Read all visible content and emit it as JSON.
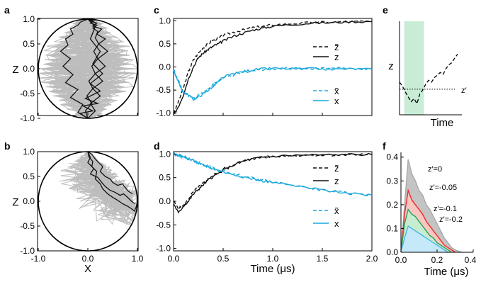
{
  "figure": {
    "panel_labels": [
      "a",
      "b",
      "c",
      "d",
      "e",
      "f"
    ]
  },
  "colors": {
    "black": "#111111",
    "blue": "#1aa7dd",
    "gray": "#bdbdbd",
    "green_band": "#c9ecd7",
    "f_gray": "#a9a9a9",
    "f_red": "#ee2b2b",
    "f_green": "#2e9e60",
    "f_blue": "#48b8e6"
  },
  "chart_data": [
    {
      "panel": "a",
      "type": "scatter",
      "description_kind": "bloch-disk trajectories",
      "xlabel": "X",
      "ylabel": "Z",
      "xlim": [
        -1.0,
        1.0
      ],
      "ylim": [
        -1.05,
        1.05
      ],
      "yticks": [
        "1.0",
        "0.5",
        "0.0",
        "-0.5",
        "-1.0"
      ],
      "xticks": [],
      "trajectories": [
        {
          "x": [
            0.0,
            -0.05,
            0.08,
            -0.02,
            0.1,
            0.02,
            0.15,
            0.08,
            0.2,
            0.12,
            0.22,
            0.15,
            0.2,
            0.1,
            0.18,
            0.05,
            0.12,
            0.02,
            0.1,
            0.0
          ],
          "y": [
            -1.0,
            -0.85,
            -0.7,
            -0.55,
            -0.4,
            -0.25,
            -0.1,
            0.05,
            0.2,
            0.35,
            0.5,
            0.62,
            0.75,
            0.82,
            0.88,
            0.92,
            0.96,
            0.98,
            0.99,
            1.0
          ]
        },
        {
          "x": [
            0.0,
            0.15,
            0.05,
            0.25,
            0.1,
            0.3,
            0.15,
            0.35,
            0.2,
            0.4,
            0.22,
            0.35,
            0.18,
            0.28,
            0.1,
            0.18,
            0.05,
            0.1,
            0.0
          ],
          "y": [
            -1.0,
            -0.85,
            -0.7,
            -0.55,
            -0.4,
            -0.25,
            -0.1,
            0.05,
            0.2,
            0.35,
            0.5,
            0.6,
            0.7,
            0.8,
            0.86,
            0.92,
            0.96,
            0.99,
            1.0
          ]
        },
        {
          "x": [
            0.0,
            -0.2,
            -0.1,
            -0.35,
            -0.2,
            -0.45,
            -0.3,
            -0.5,
            -0.35,
            -0.55,
            -0.4,
            -0.45,
            -0.3,
            -0.35,
            -0.2,
            -0.15,
            -0.05,
            0.0
          ],
          "y": [
            -1.0,
            -0.88,
            -0.72,
            -0.58,
            -0.42,
            -0.28,
            -0.12,
            0.05,
            0.2,
            0.35,
            0.48,
            0.6,
            0.7,
            0.8,
            0.88,
            0.94,
            0.98,
            1.0
          ]
        },
        {
          "x": [
            0.0,
            -0.15,
            0.1,
            -0.1,
            0.2,
            -0.05,
            0.25,
            0.05,
            0.3,
            0.1,
            0.25,
            0.05,
            0.15,
            0.0
          ],
          "y": [
            -1.0,
            -0.9,
            -0.85,
            -0.75,
            -0.7,
            -0.6,
            -0.45,
            -0.3,
            -0.1,
            0.1,
            0.35,
            0.6,
            0.85,
            1.0
          ]
        }
      ]
    },
    {
      "panel": "b",
      "type": "scatter",
      "description_kind": "bloch-disk trajectories",
      "xlabel": "X",
      "ylabel": "Z",
      "xlim": [
        -1.0,
        1.0
      ],
      "ylim": [
        -1.05,
        1.05
      ],
      "yticks": [
        "1.0",
        "0.5",
        "0.0",
        "-0.5",
        "-1.0"
      ],
      "xticks": [
        "-1.0",
        "0.0",
        "1.0"
      ],
      "trajectories": [
        {
          "x": [
            0.0,
            0.02,
            0.1,
            0.08,
            0.18,
            0.15,
            0.25,
            0.3,
            0.4,
            0.5,
            0.6,
            0.7,
            0.8,
            0.88,
            0.94,
            0.98,
            1.0
          ],
          "y": [
            1.0,
            0.9,
            0.8,
            0.7,
            0.6,
            0.45,
            0.35,
            0.25,
            0.15,
            0.08,
            0.02,
            -0.05,
            -0.1,
            -0.15,
            -0.2,
            -0.1,
            0.0
          ]
        },
        {
          "x": [
            0.0,
            0.05,
            0.0,
            0.12,
            0.05,
            0.2,
            0.28,
            0.35,
            0.45,
            0.55,
            0.65,
            0.72,
            0.8,
            0.88,
            0.95
          ],
          "y": [
            1.0,
            0.88,
            0.78,
            0.66,
            0.55,
            0.48,
            0.38,
            0.3,
            0.22,
            0.18,
            0.12,
            0.15,
            0.08,
            0.0,
            -0.05
          ]
        },
        {
          "x": [
            0.0,
            0.08,
            0.15,
            0.22,
            0.3,
            0.25,
            0.35,
            0.45,
            0.5,
            0.6,
            0.7,
            0.75,
            0.82,
            0.9
          ],
          "y": [
            1.0,
            0.95,
            0.85,
            0.78,
            0.7,
            0.6,
            0.5,
            0.45,
            0.38,
            0.32,
            0.35,
            0.28,
            0.2,
            0.15
          ]
        }
      ]
    },
    {
      "panel": "c",
      "type": "line",
      "xlim": [
        0.0,
        2.0
      ],
      "ylim": [
        -1.05,
        1.05
      ],
      "yticks": [
        "1.0",
        "0.5",
        "0.0",
        "-0.5",
        "-1.0"
      ],
      "xticks": [],
      "legend": [
        "z̃",
        "z",
        "x̃",
        "x"
      ],
      "series": [
        {
          "name": "z̃",
          "style": "dashed",
          "color": "black",
          "x": [
            0,
            0.05,
            0.1,
            0.15,
            0.2,
            0.25,
            0.3,
            0.35,
            0.4,
            0.45,
            0.5,
            0.6,
            0.7,
            0.8,
            0.9,
            1.0,
            1.2,
            1.4,
            1.6,
            1.8,
            2.0
          ],
          "y": [
            -1.0,
            -0.75,
            -0.45,
            -0.1,
            0.15,
            0.3,
            0.42,
            0.5,
            0.58,
            0.62,
            0.68,
            0.75,
            0.8,
            0.85,
            0.88,
            0.91,
            0.94,
            0.96,
            0.97,
            0.98,
            0.99
          ]
        },
        {
          "name": "z",
          "style": "solid",
          "color": "black",
          "x": [
            0,
            0.05,
            0.1,
            0.15,
            0.2,
            0.25,
            0.3,
            0.35,
            0.4,
            0.45,
            0.5,
            0.6,
            0.7,
            0.8,
            0.9,
            1.0,
            1.2,
            1.4,
            1.6,
            1.8,
            2.0
          ],
          "y": [
            -1.05,
            -0.85,
            -0.6,
            -0.25,
            0.0,
            0.2,
            0.3,
            0.38,
            0.45,
            0.5,
            0.56,
            0.66,
            0.73,
            0.8,
            0.84,
            0.88,
            0.92,
            0.95,
            0.96,
            0.98,
            0.98
          ]
        },
        {
          "name": "x̃",
          "style": "dashed",
          "color": "blue",
          "x": [
            0,
            0.05,
            0.1,
            0.15,
            0.2,
            0.25,
            0.3,
            0.35,
            0.4,
            0.45,
            0.5,
            0.6,
            0.7,
            0.8,
            0.9,
            1.0,
            1.2,
            1.4,
            1.6,
            1.8,
            2.0
          ],
          "y": [
            -0.05,
            -0.3,
            -0.55,
            -0.62,
            -0.68,
            -0.6,
            -0.55,
            -0.48,
            -0.38,
            -0.3,
            -0.25,
            -0.18,
            -0.12,
            -0.08,
            -0.06,
            -0.04,
            -0.03,
            -0.04,
            -0.03,
            -0.04,
            -0.04
          ]
        },
        {
          "name": "x",
          "style": "solid",
          "color": "blue",
          "x": [
            0,
            0.05,
            0.1,
            0.15,
            0.2,
            0.25,
            0.3,
            0.35,
            0.4,
            0.45,
            0.5,
            0.6,
            0.7,
            0.8,
            0.9,
            1.0,
            1.2,
            1.4,
            1.6,
            1.8,
            2.0
          ],
          "y": [
            -0.05,
            -0.35,
            -0.55,
            -0.6,
            -0.7,
            -0.65,
            -0.58,
            -0.5,
            -0.42,
            -0.32,
            -0.22,
            -0.15,
            -0.1,
            -0.06,
            -0.04,
            -0.03,
            -0.04,
            -0.04,
            -0.05,
            -0.04,
            -0.05
          ]
        }
      ]
    },
    {
      "panel": "d",
      "type": "line",
      "xlim": [
        0.0,
        2.0
      ],
      "ylim": [
        -1.05,
        1.05
      ],
      "yticks": [
        "1.0",
        "0.5",
        "0.0",
        "-0.5",
        "-1.0"
      ],
      "xticks": [
        "0.0",
        "0.5",
        "1.0",
        "1.5",
        "2.0"
      ],
      "xlabel": "Time (μs)",
      "legend": [
        "z̃",
        "z",
        "x̃",
        "x"
      ],
      "series": [
        {
          "name": "z̃",
          "style": "dashed",
          "color": "black",
          "x": [
            0,
            0.05,
            0.1,
            0.15,
            0.2,
            0.25,
            0.3,
            0.35,
            0.4,
            0.5,
            0.6,
            0.7,
            0.8,
            0.9,
            1.0,
            1.2,
            1.4,
            1.6,
            1.8,
            2.0
          ],
          "y": [
            0.0,
            -0.15,
            -0.1,
            0.05,
            0.2,
            0.3,
            0.38,
            0.48,
            0.55,
            0.68,
            0.78,
            0.85,
            0.9,
            0.93,
            0.95,
            0.97,
            0.98,
            0.98,
            0.99,
            0.99
          ]
        },
        {
          "name": "z",
          "style": "solid",
          "color": "black",
          "x": [
            0,
            0.05,
            0.1,
            0.15,
            0.2,
            0.25,
            0.3,
            0.35,
            0.4,
            0.5,
            0.6,
            0.7,
            0.8,
            0.9,
            1.0,
            1.2,
            1.4,
            1.6,
            1.8,
            2.0
          ],
          "y": [
            -0.05,
            -0.25,
            -0.1,
            0.0,
            0.15,
            0.25,
            0.35,
            0.45,
            0.52,
            0.65,
            0.76,
            0.84,
            0.9,
            0.93,
            0.95,
            0.97,
            0.98,
            0.98,
            0.99,
            0.99
          ]
        },
        {
          "name": "x̃",
          "style": "dashed",
          "color": "blue",
          "x": [
            0,
            0.05,
            0.1,
            0.15,
            0.2,
            0.25,
            0.3,
            0.35,
            0.4,
            0.5,
            0.6,
            0.7,
            0.8,
            0.9,
            1.0,
            1.2,
            1.4,
            1.6,
            1.8,
            2.0
          ],
          "y": [
            1.0,
            0.98,
            0.95,
            0.9,
            0.87,
            0.82,
            0.78,
            0.74,
            0.7,
            0.64,
            0.58,
            0.53,
            0.49,
            0.45,
            0.41,
            0.34,
            0.27,
            0.21,
            0.16,
            0.13
          ]
        },
        {
          "name": "x",
          "style": "solid",
          "color": "blue",
          "x": [
            0,
            0.05,
            0.1,
            0.15,
            0.2,
            0.25,
            0.3,
            0.35,
            0.4,
            0.5,
            0.6,
            0.7,
            0.8,
            0.9,
            1.0,
            1.2,
            1.4,
            1.6,
            1.8,
            2.0
          ],
          "y": [
            1.0,
            0.97,
            0.93,
            0.9,
            0.86,
            0.8,
            0.76,
            0.73,
            0.68,
            0.62,
            0.57,
            0.52,
            0.47,
            0.43,
            0.4,
            0.33,
            0.27,
            0.21,
            0.17,
            0.13
          ]
        }
      ]
    },
    {
      "panel": "e",
      "type": "line",
      "xlabel": "Time",
      "ylabel": "z",
      "threshold_label": "z′",
      "series": [
        {
          "name": "",
          "style": "dashed",
          "color": "black",
          "x": [
            0,
            0.05,
            0.1,
            0.15,
            0.2,
            0.25,
            0.3,
            0.35,
            0.4,
            0.45,
            0.5,
            0.55,
            0.6,
            0.65,
            0.7,
            0.75,
            0.8,
            0.85,
            0.9,
            0.95,
            1.0
          ],
          "y": [
            0.0,
            -0.1,
            -0.25,
            -0.38,
            -0.5,
            -0.42,
            -0.55,
            -0.3,
            -0.2,
            -0.05,
            0.05,
            0.0,
            0.12,
            0.18,
            0.25,
            0.2,
            0.35,
            0.45,
            0.5,
            0.62,
            0.72
          ]
        }
      ],
      "threshold": -0.18,
      "highlight": [
        0.08,
        0.42
      ]
    },
    {
      "panel": "f",
      "type": "area",
      "xlim": [
        0.0,
        0.4
      ],
      "ylim": [
        0.0,
        0.42
      ],
      "xticks": [
        "0.0",
        "0.2",
        "0.4"
      ],
      "yticks": [
        "0.4",
        "0.3",
        "0.2",
        "0.1",
        "0.0"
      ],
      "xlabel": "Time (μs)",
      "series": [
        {
          "name": "z′=0",
          "color": "gray",
          "x": [
            0.0,
            0.02,
            0.04,
            0.06,
            0.08,
            0.1,
            0.12,
            0.14,
            0.16,
            0.18,
            0.2,
            0.22,
            0.24,
            0.26,
            0.28,
            0.3,
            0.32,
            0.34
          ],
          "y": [
            0.0,
            0.2,
            0.39,
            0.33,
            0.3,
            0.26,
            0.24,
            0.2,
            0.18,
            0.15,
            0.12,
            0.09,
            0.06,
            0.04,
            0.02,
            0.01,
            0.004,
            0.0
          ]
        },
        {
          "name": "z′=-0.05",
          "color": "red",
          "x": [
            0.0,
            0.02,
            0.04,
            0.06,
            0.08,
            0.1,
            0.12,
            0.14,
            0.16,
            0.18,
            0.2,
            0.22,
            0.24,
            0.26,
            0.28,
            0.3
          ],
          "y": [
            0.0,
            0.16,
            0.26,
            0.22,
            0.2,
            0.18,
            0.16,
            0.13,
            0.11,
            0.09,
            0.07,
            0.05,
            0.03,
            0.02,
            0.01,
            0.0
          ]
        },
        {
          "name": "z′=-0.1",
          "color": "green",
          "x": [
            0.0,
            0.02,
            0.04,
            0.06,
            0.08,
            0.1,
            0.12,
            0.14,
            0.16,
            0.18,
            0.2,
            0.22,
            0.24,
            0.26,
            0.28
          ],
          "y": [
            0.0,
            0.12,
            0.18,
            0.16,
            0.15,
            0.13,
            0.11,
            0.09,
            0.07,
            0.06,
            0.04,
            0.03,
            0.02,
            0.01,
            0.0
          ]
        },
        {
          "name": "z′=-0.2",
          "color": "blue",
          "x": [
            0.0,
            0.02,
            0.04,
            0.06,
            0.08,
            0.1,
            0.12,
            0.14,
            0.16,
            0.18,
            0.2,
            0.22,
            0.24,
            0.26
          ],
          "y": [
            0.0,
            0.06,
            0.11,
            0.1,
            0.09,
            0.08,
            0.07,
            0.06,
            0.05,
            0.04,
            0.03,
            0.02,
            0.01,
            0.0
          ]
        }
      ]
    }
  ]
}
